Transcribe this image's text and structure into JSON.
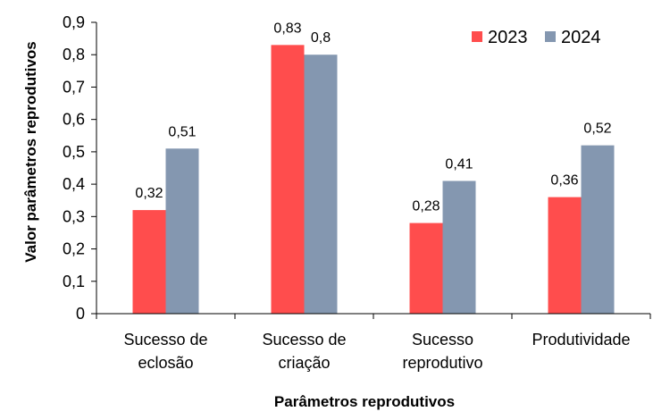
{
  "chart_data": {
    "type": "bar",
    "categories": [
      [
        "Sucesso de",
        "eclosão"
      ],
      [
        "Sucesso de",
        "criação"
      ],
      [
        "Sucesso",
        "reprodutivo"
      ],
      [
        "Produtividade"
      ]
    ],
    "series": [
      {
        "name": "2023",
        "color": "#ff4d4d",
        "values": [
          0.32,
          0.83,
          0.28,
          0.36
        ],
        "labels": [
          "0,32",
          "0,83",
          "0,28",
          "0,36"
        ]
      },
      {
        "name": "2024",
        "color": "#8497b0",
        "values": [
          0.51,
          0.8,
          0.41,
          0.52
        ],
        "labels": [
          "0,51",
          "0,8",
          "0,41",
          "0,52"
        ]
      }
    ],
    "yticks": [
      0,
      0.1,
      0.2,
      0.3,
      0.4,
      0.5,
      0.6,
      0.7,
      0.8,
      0.9
    ],
    "ytick_labels": [
      "0",
      "0,1",
      "0,2",
      "0,3",
      "0,4",
      "0,5",
      "0,6",
      "0,7",
      "0,8",
      "0,9"
    ],
    "ylim": [
      0,
      0.9
    ],
    "xlabel": "Parâmetros reprodutivos",
    "ylabel": "Valor parâmetros reprodutivos",
    "grid": false,
    "legend_position": "top-right"
  }
}
